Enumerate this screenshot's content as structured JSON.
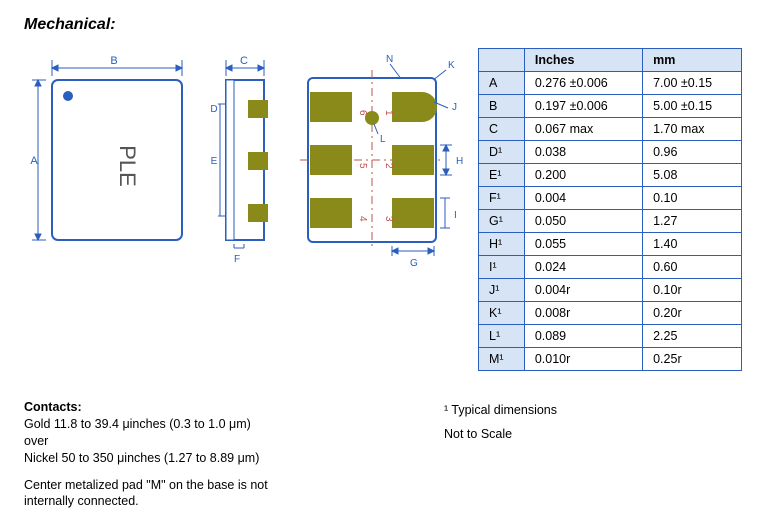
{
  "heading": "Mechanical:",
  "footnote_typical": "¹ Typical dimensions",
  "footnote_scale": "Not to Scale",
  "table": {
    "headers": {
      "key": "",
      "inches": "Inches",
      "mm": "mm"
    },
    "rows": [
      {
        "key": "A",
        "inches": "0.276 ±0.006",
        "mm": "7.00 ±0.15"
      },
      {
        "key": "B",
        "inches": "0.197 ±0.006",
        "mm": "5.00 ±0.15"
      },
      {
        "key": "C",
        "inches": "0.067 max",
        "mm": "1.70 max"
      },
      {
        "key": "D¹",
        "inches": "0.038",
        "mm": "0.96"
      },
      {
        "key": "E¹",
        "inches": "0.200",
        "mm": "5.08"
      },
      {
        "key": "F¹",
        "inches": "0.004",
        "mm": "0.10"
      },
      {
        "key": "G¹",
        "inches": "0.050",
        "mm": "1.27"
      },
      {
        "key": "H¹",
        "inches": "0.055",
        "mm": "1.40"
      },
      {
        "key": "I¹",
        "inches": "0.024",
        "mm": "0.60"
      },
      {
        "key": "J¹",
        "inches": "0.004r",
        "mm": "0.10r"
      },
      {
        "key": "K¹",
        "inches": "0.008r",
        "mm": "0.20r"
      },
      {
        "key": "L¹",
        "inches": "0.089",
        "mm": "2.25"
      },
      {
        "key": "M¹",
        "inches": "0.010r",
        "mm": "0.25r"
      }
    ]
  },
  "contacts": {
    "heading": "Contacts:",
    "line1a": "Gold   11.8 to 39.4 μinches (0.3 to 1.0 μm)",
    "line1b": "over",
    "line2": "Nickel 50 to 350 μinches (1.27 to 8.89 μm)",
    "note": "Center metalized pad \"M\" on the base is not internally connected."
  },
  "diagram": {
    "colors": {
      "outline": "#2a5fbf",
      "fill_body": "#ffffff",
      "pad": "#8a8a1a",
      "pad_dark": "#7a7a18",
      "centerline": "#c0504d",
      "label": "#2a5fbf"
    },
    "label_PLE": "PLE",
    "dim_labels": {
      "A": "A",
      "B": "B",
      "C": "C",
      "D": "D",
      "E": "E",
      "F": "F",
      "G": "G",
      "H": "H",
      "I": "I",
      "J": "J",
      "K": "K",
      "L": "L",
      "N": "N"
    },
    "pin_numbers": [
      "1",
      "2",
      "3",
      "4",
      "5",
      "6"
    ]
  }
}
